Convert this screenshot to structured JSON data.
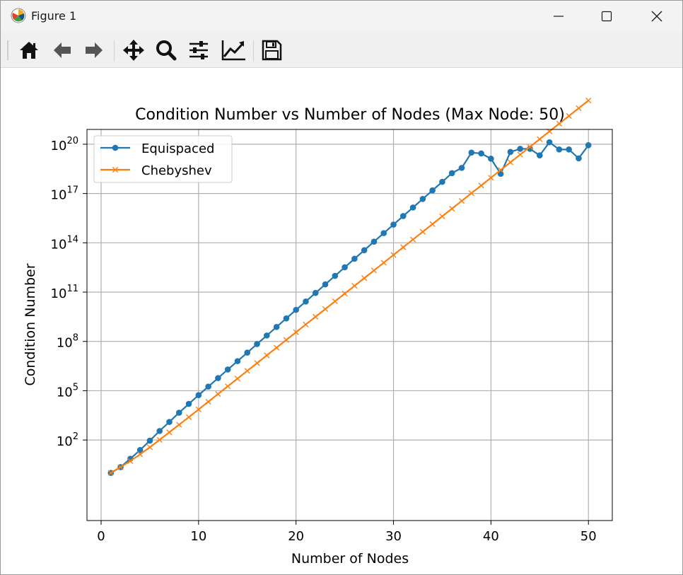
{
  "window": {
    "title": "Figure 1"
  },
  "toolbar": {
    "buttons": [
      {
        "icon": "home-icon"
      },
      {
        "icon": "back-arrow-icon"
      },
      {
        "icon": "forward-arrow-icon"
      },
      {
        "icon": "pan-move-icon"
      },
      {
        "icon": "zoom-magnifier-icon"
      },
      {
        "icon": "configure-subplots-icon"
      },
      {
        "icon": "edit-axis-line-icon"
      },
      {
        "icon": "save-disk-icon"
      }
    ]
  },
  "chart_data": {
    "type": "line",
    "title": "Condition Number vs Number of Nodes (Max Node: 50)",
    "xlabel": "Number of Nodes",
    "ylabel": "Condition Number",
    "xlim": [
      -1.45,
      52.45
    ],
    "ylim_log10": [
      -2.9,
      20.9
    ],
    "yscale": "log",
    "grid": true,
    "legend_position": "upper left",
    "x_ticks": [
      0,
      10,
      20,
      30,
      40,
      50
    ],
    "y_ticks": [
      {
        "base": "10",
        "exp": "2",
        "log10": 2
      },
      {
        "base": "10",
        "exp": "5",
        "log10": 5
      },
      {
        "base": "10",
        "exp": "8",
        "log10": 8
      },
      {
        "base": "10",
        "exp": "11",
        "log10": 11
      },
      {
        "base": "10",
        "exp": "14",
        "log10": 14
      },
      {
        "base": "10",
        "exp": "17",
        "log10": 17
      },
      {
        "base": "10",
        "exp": "20",
        "log10": 20
      }
    ],
    "x": [
      1,
      2,
      3,
      4,
      5,
      6,
      7,
      8,
      9,
      10,
      11,
      12,
      13,
      14,
      15,
      16,
      17,
      18,
      19,
      20,
      21,
      22,
      23,
      24,
      25,
      26,
      27,
      28,
      29,
      30,
      31,
      32,
      33,
      34,
      35,
      36,
      37,
      38,
      39,
      40,
      41,
      42,
      43,
      44,
      45,
      46,
      47,
      48,
      49,
      50
    ],
    "series": [
      {
        "name": "Equispaced",
        "color": "#1f77b4",
        "marker": "circle",
        "log10_values": [
          0,
          0.35,
          0.86,
          1.39,
          1.96,
          2.55,
          3.1,
          3.66,
          4.2,
          4.73,
          5.25,
          5.77,
          6.29,
          6.8,
          7.32,
          7.84,
          8.36,
          8.88,
          9.4,
          9.92,
          10.43,
          10.95,
          11.47,
          11.99,
          12.51,
          13.03,
          13.55,
          14.07,
          14.59,
          15.11,
          15.63,
          16.15,
          16.67,
          17.19,
          17.71,
          18.24,
          18.56,
          19.49,
          19.44,
          19.12,
          18.2,
          19.53,
          19.72,
          19.72,
          19.32,
          20.12,
          19.68,
          19.68,
          19.14,
          19.94
        ]
      },
      {
        "name": "Chebyshev",
        "color": "#ff7f0e",
        "marker": "x",
        "log10_values": [
          0,
          0.35,
          0.72,
          1.13,
          1.56,
          2.01,
          2.47,
          2.93,
          3.39,
          3.86,
          4.33,
          4.8,
          5.27,
          5.74,
          6.21,
          6.68,
          7.15,
          7.62,
          8.09,
          8.56,
          9.03,
          9.5,
          9.97,
          10.44,
          10.91,
          11.38,
          11.85,
          12.32,
          12.79,
          13.26,
          13.73,
          14.2,
          14.67,
          15.14,
          15.61,
          16.08,
          16.55,
          17.02,
          17.49,
          17.96,
          18.43,
          18.9,
          19.37,
          19.84,
          20.31,
          20.78,
          21.25,
          21.72,
          22.19,
          22.66
        ]
      }
    ]
  }
}
